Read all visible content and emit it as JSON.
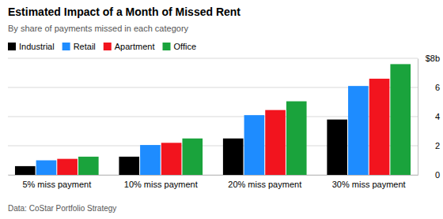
{
  "chart_data": {
    "type": "bar",
    "title": "Estimated Impact of a Month of Missed Rent",
    "subtitle": "By share of payments missed in each category",
    "source": "Data: CoStar Portfolio Strategy",
    "categories": [
      "5% miss payment",
      "10% miss payment",
      "20% miss payment",
      "30% miss payment"
    ],
    "series": [
      {
        "name": "Industrial",
        "color": "#000000",
        "values": [
          0.6,
          1.25,
          2.5,
          3.8
        ]
      },
      {
        "name": "Retail",
        "color": "#1e8cff",
        "values": [
          1.0,
          2.05,
          4.1,
          6.1
        ]
      },
      {
        "name": "Apartment",
        "color": "#f2141e",
        "values": [
          1.1,
          2.2,
          4.45,
          6.6
        ]
      },
      {
        "name": "Office",
        "color": "#1aa33c",
        "values": [
          1.25,
          2.5,
          5.05,
          7.6
        ]
      }
    ],
    "ylim": [
      0,
      8
    ],
    "yticks": [
      0,
      2,
      4,
      6,
      {
        "value": 8,
        "label": "$8b"
      }
    ],
    "grid": true,
    "legend": "top-left"
  }
}
